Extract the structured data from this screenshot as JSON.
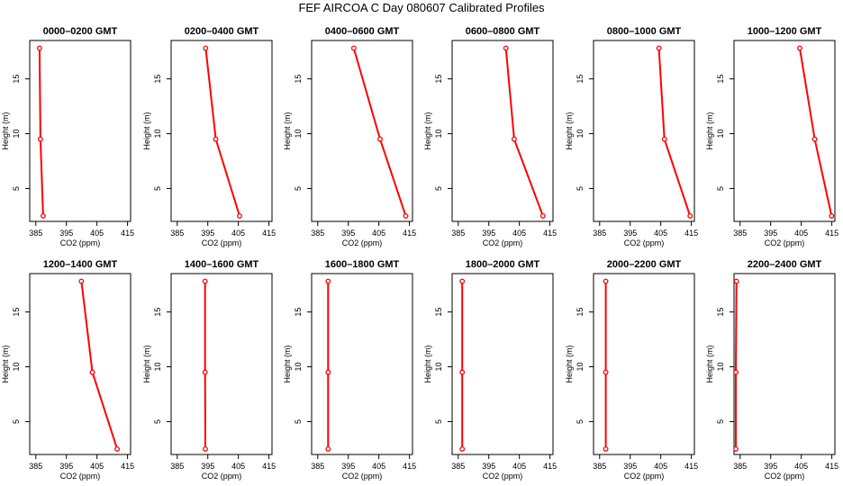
{
  "title": "FEF AIRCOA C  Day 080607  Calibrated Profiles",
  "series_color": "#ff0000",
  "chart_data": [
    {
      "type": "line",
      "title": "0000–0200 GMT",
      "xlabel": "CO2 (ppm)",
      "ylabel": "Height (m)",
      "xlim": [
        383,
        416
      ],
      "ylim": [
        2,
        18.5
      ],
      "xticks": [
        385,
        395,
        405,
        415
      ],
      "yticks": [
        5,
        10,
        15
      ],
      "x": [
        386.2,
        386.5,
        387.4
      ],
      "y": [
        17.8,
        9.5,
        2.5
      ]
    },
    {
      "type": "line",
      "title": "0200–0400 GMT",
      "xlabel": "CO2 (ppm)",
      "ylabel": "Height (m)",
      "xlim": [
        383,
        416
      ],
      "ylim": [
        2,
        18.5
      ],
      "xticks": [
        385,
        395,
        405,
        415
      ],
      "yticks": [
        5,
        10,
        15
      ],
      "x": [
        394.3,
        397.6,
        405.4
      ],
      "y": [
        17.8,
        9.5,
        2.5
      ]
    },
    {
      "type": "line",
      "title": "0400–0600 GMT",
      "xlabel": "CO2 (ppm)",
      "ylabel": "Height (m)",
      "xlim": [
        383,
        416
      ],
      "ylim": [
        2,
        18.5
      ],
      "xticks": [
        385,
        395,
        405,
        415
      ],
      "yticks": [
        5,
        10,
        15
      ],
      "x": [
        396.8,
        405.4,
        413.8
      ],
      "y": [
        17.8,
        9.5,
        2.5
      ]
    },
    {
      "type": "line",
      "title": "0600–0800 GMT",
      "xlabel": "CO2 (ppm)",
      "ylabel": "Height (m)",
      "xlim": [
        383,
        416
      ],
      "ylim": [
        2,
        18.5
      ],
      "xticks": [
        385,
        395,
        405,
        415
      ],
      "yticks": [
        5,
        10,
        15
      ],
      "x": [
        400.6,
        403.3,
        412.7
      ],
      "y": [
        17.8,
        9.5,
        2.5
      ]
    },
    {
      "type": "line",
      "title": "0800–1000 GMT",
      "xlabel": "CO2 (ppm)",
      "ylabel": "Height (m)",
      "xlim": [
        383,
        416
      ],
      "ylim": [
        2,
        18.5
      ],
      "xticks": [
        385,
        395,
        405,
        415
      ],
      "yticks": [
        5,
        10,
        15
      ],
      "x": [
        404.4,
        406.2,
        414.6
      ],
      "y": [
        17.8,
        9.5,
        2.5
      ]
    },
    {
      "type": "line",
      "title": "1000–1200 GMT",
      "xlabel": "CO2 (ppm)",
      "ylabel": "Height (m)",
      "xlim": [
        383,
        416
      ],
      "ylim": [
        2,
        18.5
      ],
      "xticks": [
        385,
        395,
        405,
        415
      ],
      "yticks": [
        5,
        10,
        15
      ],
      "x": [
        404.5,
        409.4,
        414.9
      ],
      "y": [
        17.8,
        9.5,
        2.5
      ]
    },
    {
      "type": "line",
      "title": "1200–1400 GMT",
      "xlabel": "CO2 (ppm)",
      "ylabel": "Height (m)",
      "xlim": [
        383,
        416
      ],
      "ylim": [
        2,
        18.5
      ],
      "xticks": [
        385,
        395,
        405,
        415
      ],
      "yticks": [
        5,
        10,
        15
      ],
      "x": [
        399.9,
        403.5,
        411.6
      ],
      "y": [
        17.8,
        9.5,
        2.5
      ]
    },
    {
      "type": "line",
      "title": "1400–1600 GMT",
      "xlabel": "CO2 (ppm)",
      "ylabel": "Height (m)",
      "xlim": [
        383,
        416
      ],
      "ylim": [
        2,
        18.5
      ],
      "xticks": [
        385,
        395,
        405,
        415
      ],
      "yticks": [
        5,
        10,
        15
      ],
      "x": [
        394.1,
        394.1,
        394.2
      ],
      "y": [
        17.8,
        9.5,
        2.5
      ]
    },
    {
      "type": "line",
      "title": "1600–1800 GMT",
      "xlabel": "CO2 (ppm)",
      "ylabel": "Height (m)",
      "xlim": [
        383,
        416
      ],
      "ylim": [
        2,
        18.5
      ],
      "xticks": [
        385,
        395,
        405,
        415
      ],
      "yticks": [
        5,
        10,
        15
      ],
      "x": [
        388.4,
        388.4,
        388.4
      ],
      "y": [
        17.8,
        9.5,
        2.5
      ]
    },
    {
      "type": "line",
      "title": "1800–2000 GMT",
      "xlabel": "CO2 (ppm)",
      "ylabel": "Height (m)",
      "xlim": [
        383,
        416
      ],
      "ylim": [
        2,
        18.5
      ],
      "xticks": [
        385,
        395,
        405,
        415
      ],
      "yticks": [
        5,
        10,
        15
      ],
      "x": [
        386.3,
        386.3,
        386.3
      ],
      "y": [
        17.8,
        9.5,
        2.5
      ]
    },
    {
      "type": "line",
      "title": "2000–2200 GMT",
      "xlabel": "CO2 (ppm)",
      "ylabel": "Height (m)",
      "xlim": [
        383,
        416
      ],
      "ylim": [
        2,
        18.5
      ],
      "xticks": [
        385,
        395,
        405,
        415
      ],
      "yticks": [
        5,
        10,
        15
      ],
      "x": [
        387.0,
        387.0,
        387.0
      ],
      "y": [
        17.8,
        9.5,
        2.5
      ]
    },
    {
      "type": "line",
      "title": "2200–2400 GMT",
      "xlabel": "CO2 (ppm)",
      "ylabel": "Height (m)",
      "xlim": [
        383,
        416
      ],
      "ylim": [
        2,
        18.5
      ],
      "xticks": [
        385,
        395,
        405,
        415
      ],
      "yticks": [
        5,
        10,
        15
      ],
      "x": [
        383.8,
        383.6,
        383.6
      ],
      "y": [
        17.8,
        9.5,
        2.5
      ]
    }
  ]
}
